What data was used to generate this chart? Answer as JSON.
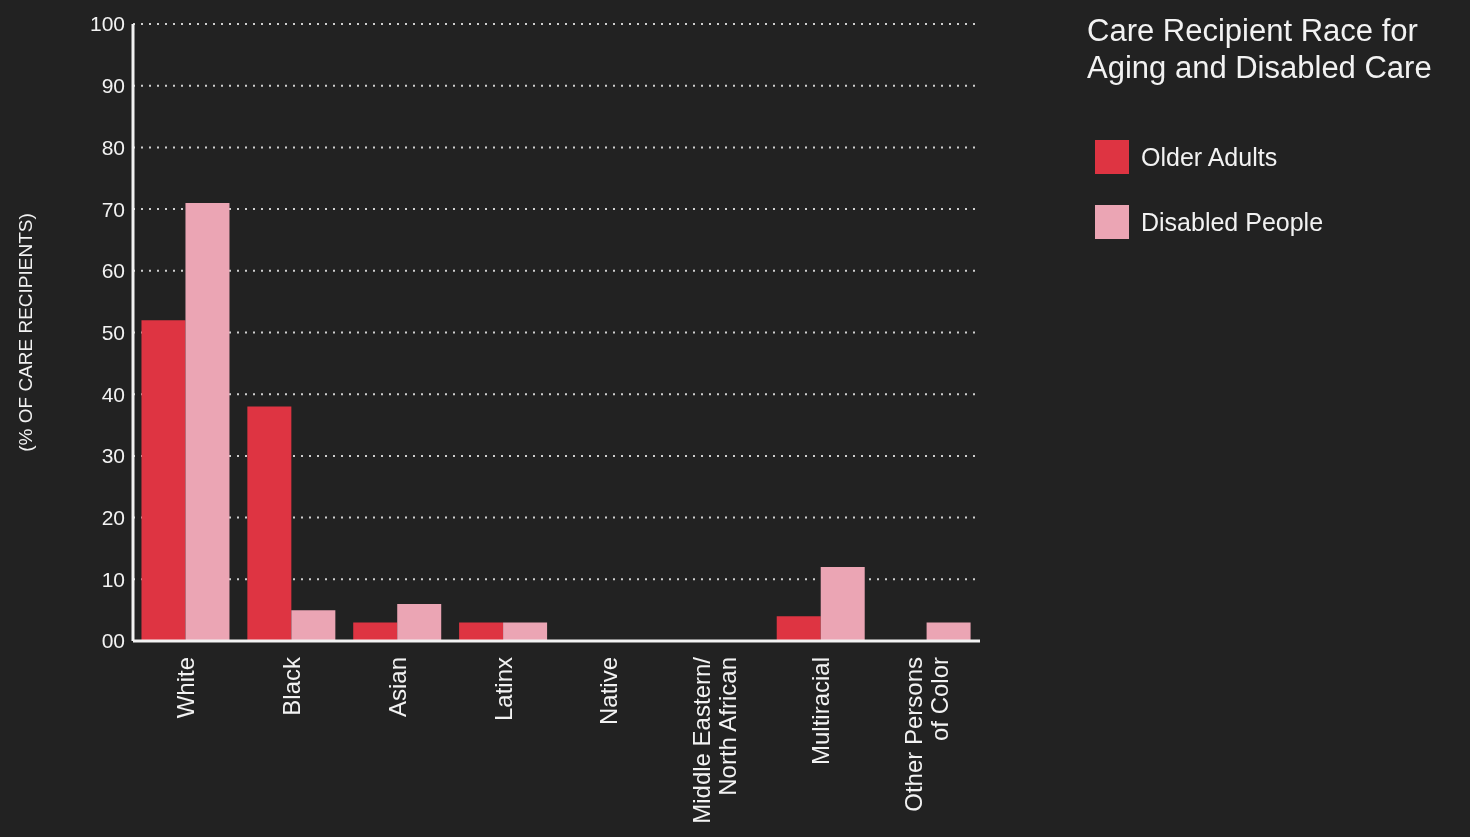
{
  "chart_data": {
    "type": "bar",
    "title": "Care Recipient Race for Aging and Disabled Care",
    "ylabel": "(% OF CARE RECIPIENTS)",
    "categories": [
      "White",
      "Black",
      "Asian",
      "Latinx",
      "Native",
      "Middle Eastern/ North African",
      "Multiracial",
      "Other Persons of Color"
    ],
    "series": [
      {
        "name": "Older Adults",
        "color": "#de3442",
        "values": [
          52,
          38,
          3,
          3,
          0,
          0,
          4,
          0
        ]
      },
      {
        "name": "Disabled People",
        "color": "#eba5b4",
        "values": [
          71,
          5,
          6,
          3,
          0,
          0,
          12,
          3
        ]
      }
    ],
    "ylim": [
      0,
      100
    ],
    "yticks": [
      {
        "value": 0,
        "label": "00"
      },
      10,
      20,
      30,
      40,
      50,
      60,
      70,
      80,
      90,
      100
    ],
    "grid": "y",
    "legend": "top right"
  }
}
